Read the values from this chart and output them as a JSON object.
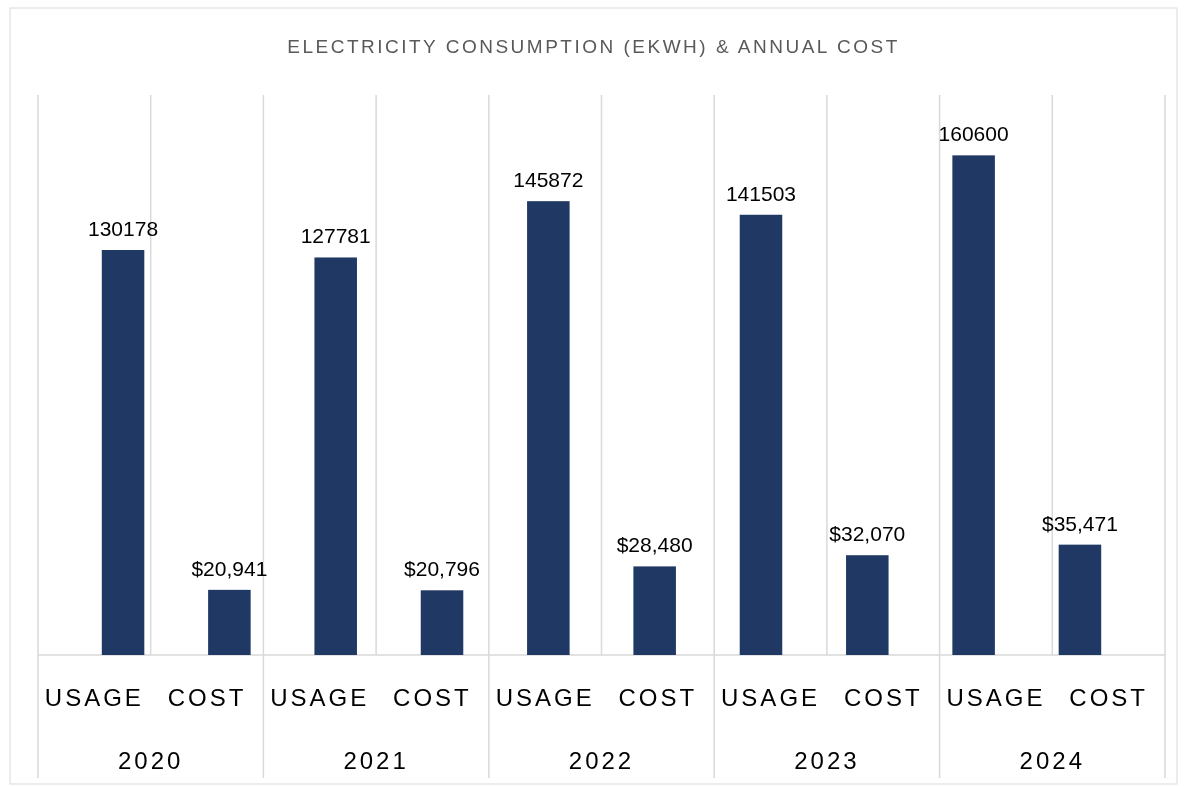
{
  "chart_data": {
    "type": "bar",
    "title": "ELECTRICITY CONSUMPTION (EKWH) & ANNUAL COST",
    "categories": [
      "USAGE",
      "COST",
      "USAGE",
      "COST",
      "USAGE",
      "COST",
      "USAGE",
      "COST",
      "USAGE",
      "COST"
    ],
    "values": [
      130178,
      20941,
      127781,
      20796,
      145872,
      28480,
      141503,
      32070,
      160600,
      35471
    ],
    "value_labels": [
      "130178",
      "$20,941",
      "127781",
      "$20,796",
      "145872",
      "$28,480",
      "141503",
      "$32,070",
      "160600",
      "$35,471"
    ],
    "color": "#203864",
    "ylim": [
      0,
      180000
    ],
    "grid": "x",
    "annotations": [
      "2020",
      "2021",
      "2022",
      "2023",
      "2024"
    ]
  }
}
